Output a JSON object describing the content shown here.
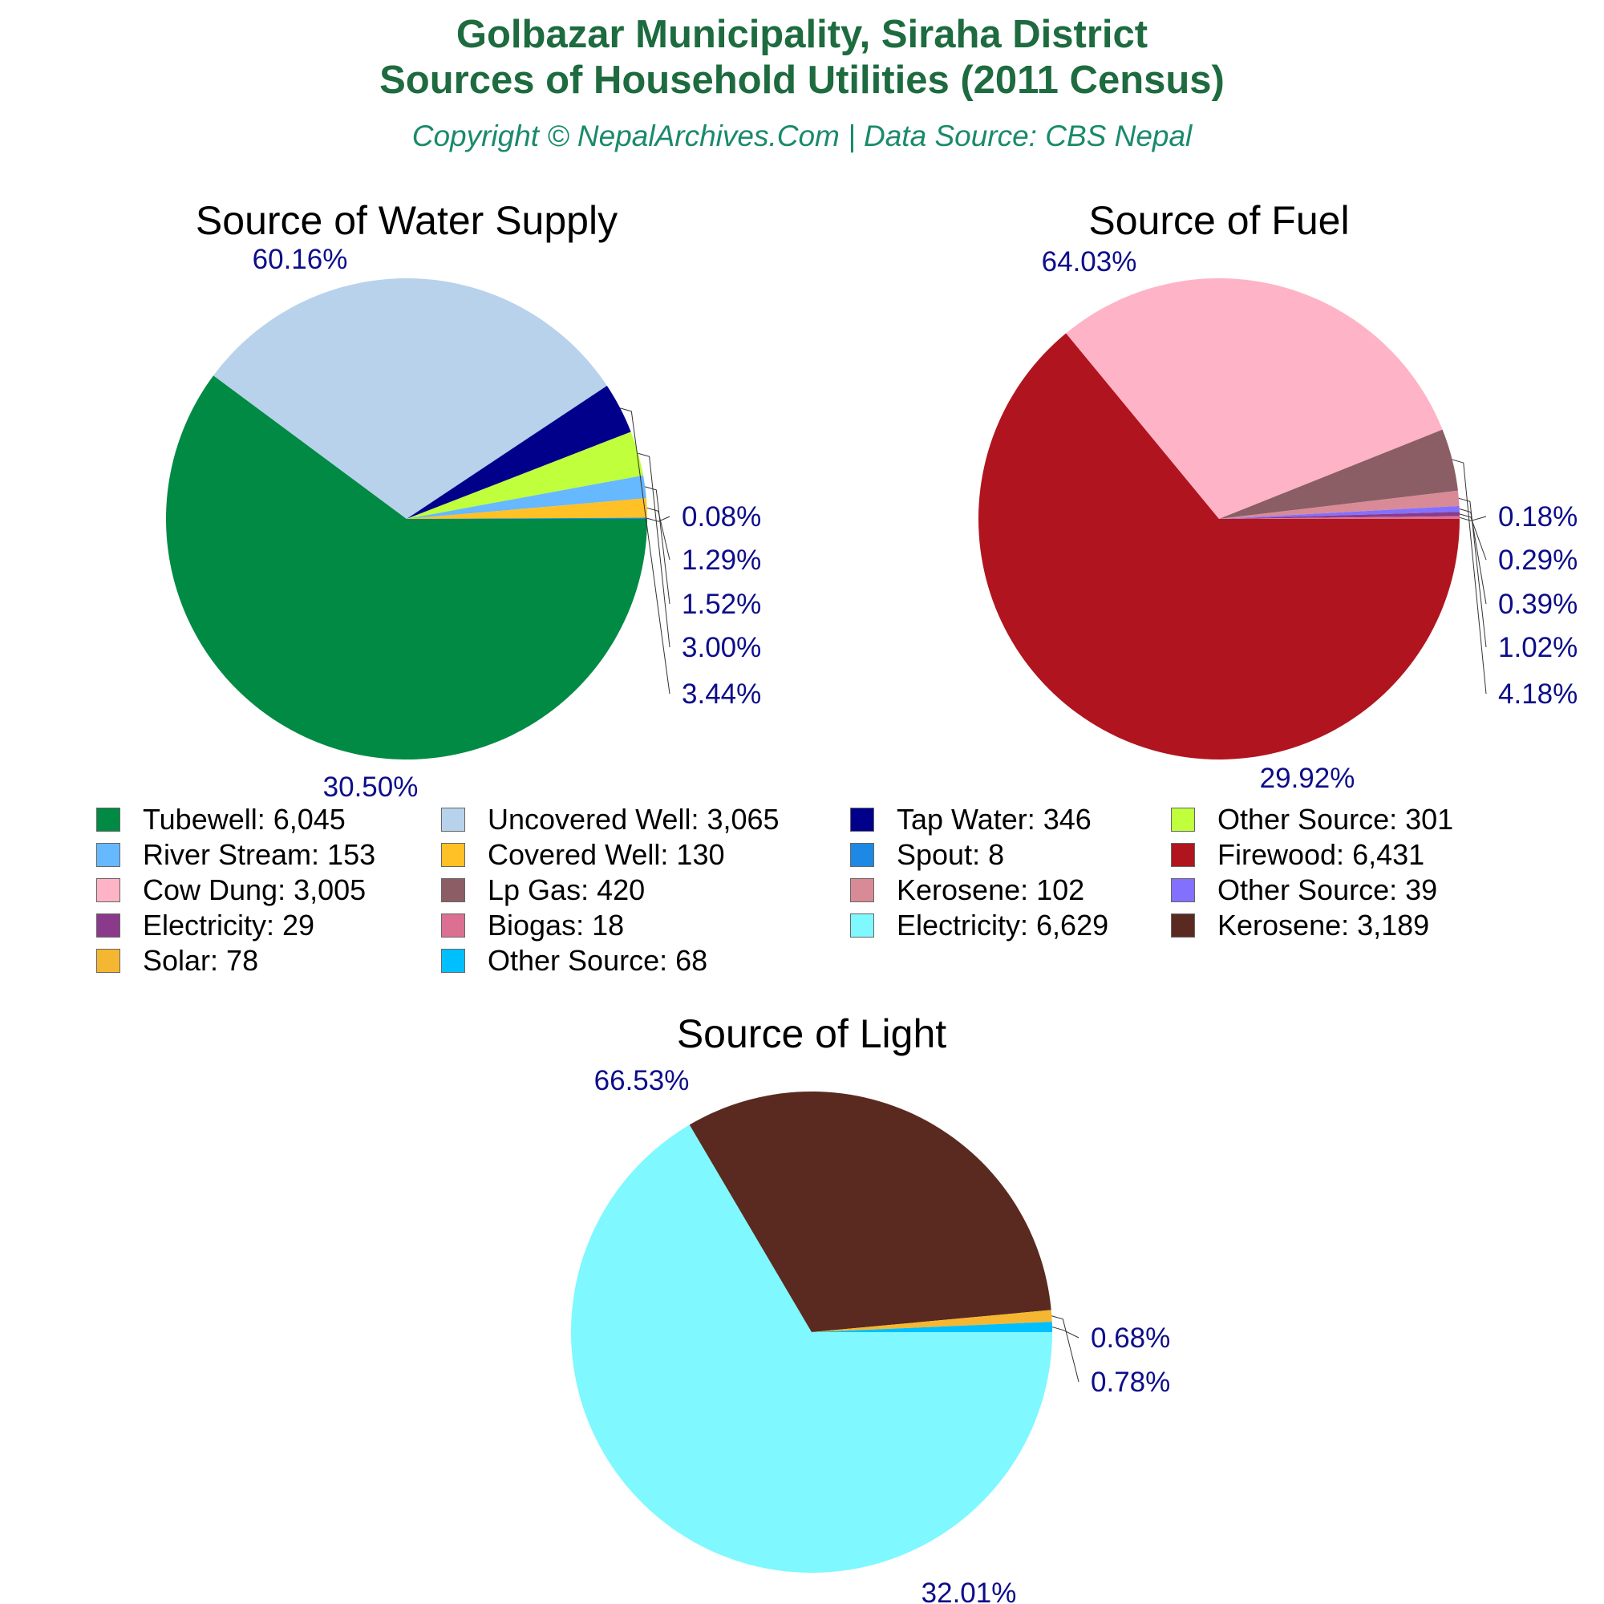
{
  "header": {
    "title_line1": "Golbazar Municipality, Siraha District",
    "title_line2": "Sources of Household Utilities (2011 Census)",
    "subtitle": "Copyright © NepalArchives.Com | Data Source: CBS Nepal"
  },
  "chart_data": [
    {
      "type": "pie",
      "title": "Source of Water Supply",
      "categories": [
        "Tubewell",
        "Uncovered Well",
        "Tap Water",
        "Other Source",
        "River Stream",
        "Covered Well",
        "Spout"
      ],
      "values": [
        6045,
        3065,
        346,
        301,
        153,
        130,
        8
      ],
      "percent_labels": [
        "60.16%",
        "30.50%",
        "3.44%",
        "3.00%",
        "1.52%",
        "1.29%",
        "0.08%"
      ],
      "colors": [
        "#008a44",
        "#b8d2ec",
        "#00008b",
        "#bfff3c",
        "#66b8ff",
        "#ffc125",
        "#1e88e5"
      ]
    },
    {
      "type": "pie",
      "title": "Source of Fuel",
      "categories": [
        "Firewood",
        "Cow Dung",
        "Lp Gas",
        "Kerosene",
        "Other Source",
        "Electricity",
        "Biogas"
      ],
      "values": [
        6431,
        3005,
        420,
        102,
        39,
        29,
        18
      ],
      "percent_labels": [
        "64.03%",
        "29.92%",
        "4.18%",
        "1.02%",
        "0.39%",
        "0.29%",
        "0.18%"
      ],
      "colors": [
        "#b0151f",
        "#ffb3c6",
        "#8b5e66",
        "#d88a96",
        "#8470ff",
        "#8b3a8b",
        "#db7093"
      ]
    },
    {
      "type": "pie",
      "title": "Source of Light",
      "categories": [
        "Electricity",
        "Kerosene",
        "Solar",
        "Other Source"
      ],
      "values": [
        6629,
        3189,
        78,
        68
      ],
      "percent_labels": [
        "66.53%",
        "32.01%",
        "0.78%",
        "0.68%"
      ],
      "colors": [
        "#7ff8ff",
        "#5a2a20",
        "#f5b731",
        "#00bfff"
      ]
    }
  ],
  "legend": [
    {
      "label": "Tubewell: 6,045",
      "color": "#008a44"
    },
    {
      "label": "Uncovered Well: 3,065",
      "color": "#b8d2ec"
    },
    {
      "label": "Tap Water: 346",
      "color": "#00008b"
    },
    {
      "label": "Other Source: 301",
      "color": "#bfff3c"
    },
    {
      "label": "River Stream: 153",
      "color": "#66b8ff"
    },
    {
      "label": "Covered Well: 130",
      "color": "#ffc125"
    },
    {
      "label": "Spout: 8",
      "color": "#1e88e5"
    },
    {
      "label": "Firewood: 6,431",
      "color": "#b0151f"
    },
    {
      "label": "Cow Dung: 3,005",
      "color": "#ffb3c6"
    },
    {
      "label": "Lp Gas: 420",
      "color": "#8b5e66"
    },
    {
      "label": "Kerosene: 102",
      "color": "#d88a96"
    },
    {
      "label": "Other Source: 39",
      "color": "#8470ff"
    },
    {
      "label": "Electricity: 29",
      "color": "#8b3a8b"
    },
    {
      "label": "Biogas: 18",
      "color": "#db7093"
    },
    {
      "label": "Electricity: 6,629",
      "color": "#7ff8ff"
    },
    {
      "label": "Kerosene: 3,189",
      "color": "#5a2a20"
    },
    {
      "label": "Solar: 78",
      "color": "#f5b731"
    },
    {
      "label": "Other Source: 68",
      "color": "#00bfff"
    }
  ]
}
